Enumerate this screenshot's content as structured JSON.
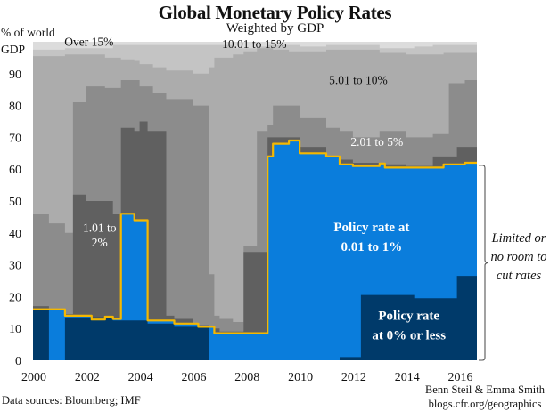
{
  "chart_data": {
    "type": "area",
    "title": "Global Monetary Policy Rates",
    "subtitle": "Weighted by GDP",
    "ylabel": "% of world GDP",
    "xlabel": "",
    "xlim": [
      2000,
      2016.65
    ],
    "ylim": [
      0,
      100
    ],
    "x_ticks": [
      2000,
      2002,
      2004,
      2006,
      2008,
      2010,
      2012,
      2014,
      2016
    ],
    "y_ticks": [
      0,
      10,
      20,
      30,
      40,
      50,
      60,
      70,
      80,
      90
    ],
    "stacking": "cumulative upper boundaries, stepped",
    "boundary_x": [
      2000,
      2000.6,
      2001.2,
      2001.5,
      2002,
      2002.2,
      2002.7,
      2003,
      2003.3,
      2003.8,
      2004,
      2004.3,
      2004.5,
      2005,
      2005.3,
      2006,
      2006.2,
      2006.6,
      2006.8,
      2007,
      2007.5,
      2007.9,
      2008.4,
      2008.8,
      2009,
      2009.6,
      2010,
      2011,
      2011.5,
      2012,
      2012.3,
      2013,
      2013.2,
      2014,
      2014.3,
      2015,
      2015.4,
      2015.6,
      2015.9,
      2016.2
    ],
    "series": [
      {
        "name": "Policy rate at 0% or less",
        "color": "#003a6a",
        "upper": [
          16,
          0,
          13.5,
          13.5,
          13.5,
          13.5,
          13.5,
          12.5,
          12.5,
          12.5,
          12.5,
          11.5,
          11.5,
          11.5,
          10.5,
          10.5,
          10.5,
          0,
          0,
          0,
          0,
          0,
          0,
          0,
          0,
          0,
          0,
          0,
          1,
          1,
          20.5,
          20.5,
          20.5,
          20.5,
          19.5,
          19.5,
          19.5,
          19.5,
          26.5,
          26.5
        ]
      },
      {
        "name": "Policy rate at 0.01 to 1%",
        "color": "#0a7ddc",
        "upper": [
          16,
          16,
          14,
          14,
          14,
          12.8,
          13.7,
          13,
          46,
          44,
          44,
          12.5,
          12.5,
          12.5,
          11.5,
          11.5,
          10.5,
          10.5,
          8.5,
          8.5,
          8.5,
          8.5,
          8.5,
          64,
          68,
          69,
          65,
          64,
          61.5,
          61,
          61,
          61.8,
          60.5,
          60.5,
          60.5,
          60.5,
          61.5,
          61.5,
          61.5,
          62
        ]
      },
      {
        "name": "1.01 to 2%",
        "color": "#606060",
        "upper": [
          17,
          14.5,
          14.5,
          52,
          50,
          50,
          50,
          46,
          73,
          72,
          75,
          72,
          72,
          14,
          13,
          11.5,
          11,
          10.5,
          10,
          9,
          9,
          34,
          34,
          70,
          70,
          70,
          67,
          64,
          63,
          62,
          62,
          62,
          61.5,
          61,
          61,
          64,
          64,
          64,
          67,
          67
        ]
      },
      {
        "name": "2.01 to 5%",
        "color": "#8c8c8c",
        "upper": [
          46,
          43,
          40,
          81,
          86,
          86,
          85.5,
          85.5,
          88,
          88,
          86,
          86,
          84,
          82,
          82,
          80,
          80,
          27,
          14,
          13,
          12,
          36,
          72,
          74,
          80,
          80,
          76,
          73,
          72,
          70,
          70,
          72,
          72,
          70,
          70,
          71,
          71,
          87,
          87,
          88
        ]
      },
      {
        "name": "5.01 to 10%",
        "color": "#acacac",
        "upper": [
          95.5,
          95.5,
          96,
          96,
          96,
          96,
          95,
          95,
          94.5,
          94,
          93,
          93,
          92,
          91,
          91,
          90,
          90,
          92,
          95,
          95,
          96,
          97,
          98,
          98,
          97.5,
          97,
          97,
          97.5,
          97.5,
          97.5,
          97.5,
          96.5,
          96.5,
          96,
          96,
          96,
          96.5,
          96.5,
          96.5,
          96.5
        ]
      },
      {
        "name": "10.01 to 15%",
        "color": "#c4c4c4",
        "upper": [
          97.5,
          97.5,
          98,
          98,
          98,
          98,
          98,
          99,
          99,
          99,
          99,
          99,
          99,
          99,
          99,
          99,
          99,
          99,
          99,
          99,
          98,
          98,
          98.5,
          99,
          99,
          99,
          98.5,
          99,
          99,
          99,
          99,
          98,
          98,
          98,
          98.5,
          99,
          99,
          99,
          99,
          99
        ]
      },
      {
        "name": "Over 15%",
        "color": "#dcdcdc",
        "upper": [
          100,
          100,
          100,
          100,
          100,
          100,
          100,
          100,
          100,
          100,
          100,
          100,
          100,
          100,
          100,
          100,
          100,
          100,
          100,
          100,
          100,
          100,
          100,
          100,
          100,
          100,
          100,
          100,
          100,
          100,
          100,
          100,
          100,
          100,
          100,
          100,
          100,
          100,
          100,
          100
        ]
      }
    ],
    "highlight_line": {
      "name": "Upper bound of 0.01 to 1%",
      "color": "#f5b800",
      "follows": "Policy rate at 0.01 to 1%"
    },
    "annotations": [
      {
        "text": "Over 15%",
        "x": 2002.1,
        "y": 98.8,
        "color": "#111111"
      },
      {
        "text": "10.01 to 15%",
        "x": 2008.3,
        "y": 98.1,
        "color": "#111111"
      },
      {
        "text": "5.01 to 10%",
        "x": 2012.2,
        "y": 86.8,
        "color": "#111111"
      },
      {
        "text": "2.01 to 5%",
        "x": 2012.9,
        "y": 67.3,
        "color": "#ffffff"
      },
      {
        "text": "1.01 to",
        "x": 2002.5,
        "y": 40.3,
        "color": "#ffffff"
      },
      {
        "text": "2%",
        "x": 2002.5,
        "y": 35.8,
        "color": "#ffffff"
      },
      {
        "text": "Policy rate at",
        "x": 2012.7,
        "y": 40.5,
        "color": "#ffffff",
        "bold": true
      },
      {
        "text": "0.01 to 1%",
        "x": 2012.7,
        "y": 34.3,
        "color": "#ffffff",
        "bold": true
      },
      {
        "text": "Policy rate",
        "x": 2014.1,
        "y": 12.7,
        "color": "#ffffff",
        "bold": true
      },
      {
        "text": "at 0% or less",
        "x": 2014.1,
        "y": 6.6,
        "color": "#ffffff",
        "bold": true
      }
    ],
    "bracket": {
      "from": 0,
      "to": 61.5,
      "label_lines": [
        "Limited or",
        "no room to",
        "cut rates"
      ]
    },
    "grid": false,
    "legend": "none (inline labels)"
  },
  "footer": {
    "source": "Data sources: Bloomberg; IMF",
    "credit_line1": "Benn Steil & Emma Smith",
    "credit_line2": "blogs.cfr.org/geographics"
  }
}
